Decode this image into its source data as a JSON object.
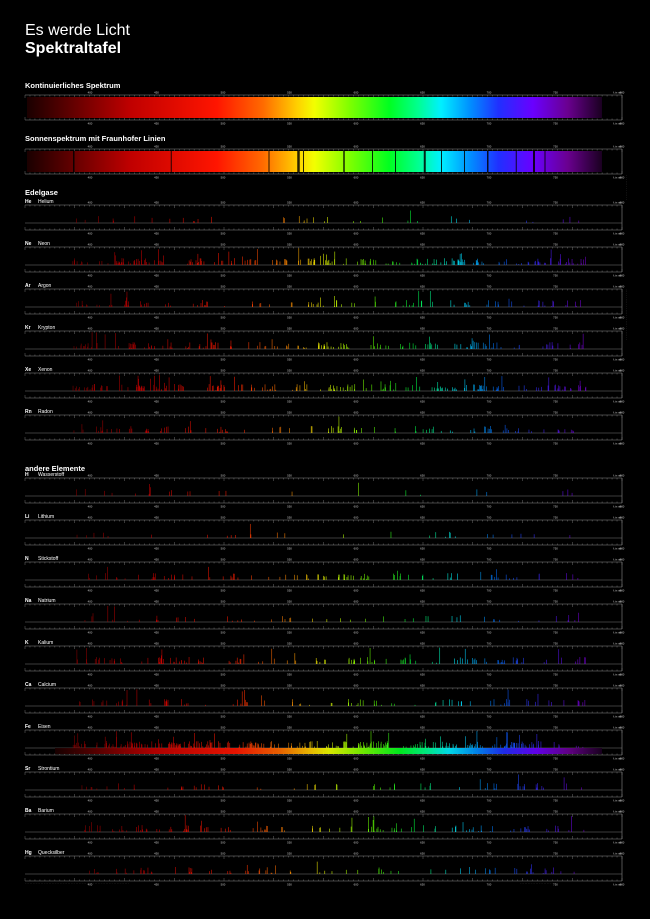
{
  "title": "Es werde Licht",
  "subtitle": "Spektraltafel",
  "sections": {
    "continuous": "Kontinuierliches Spektrum",
    "solar": "Sonnenspektrum mit Fraunhofer Linien",
    "noble": "Edelgase",
    "other": "andere Elemente"
  },
  "tick_labels": [
    "400",
    "450",
    "500",
    "550",
    "600",
    "650",
    "700",
    "750",
    "800"
  ],
  "unit": "λ in nm",
  "elements": [
    {
      "symbol": "He",
      "name": "Helium",
      "density": 0.1
    },
    {
      "symbol": "Ne",
      "name": "Neon",
      "density": 0.75
    },
    {
      "symbol": "Ar",
      "name": "Argon",
      "density": 0.35
    },
    {
      "symbol": "Kr",
      "name": "Krypton",
      "density": 0.55
    },
    {
      "symbol": "Xe",
      "name": "Xenon",
      "density": 0.7
    },
    {
      "symbol": "Rn",
      "name": "Radon",
      "density": 0.35
    },
    {
      "symbol": "H",
      "name": "Wasserstoff",
      "density": 0.05
    },
    {
      "symbol": "Li",
      "name": "Lithium",
      "density": 0.07
    },
    {
      "symbol": "N",
      "name": "Stickstoff",
      "density": 0.3
    },
    {
      "symbol": "Na",
      "name": "Natrium",
      "density": 0.15
    },
    {
      "symbol": "K",
      "name": "Kalium",
      "density": 0.45
    },
    {
      "symbol": "Ca",
      "name": "Calcium",
      "density": 0.3
    },
    {
      "symbol": "Fe",
      "name": "Eisen",
      "density": 1.0
    },
    {
      "symbol": "Sr",
      "name": "Strontium",
      "density": 0.2
    },
    {
      "symbol": "Ba",
      "name": "Barium",
      "density": 0.4
    },
    {
      "symbol": "Hg",
      "name": "Quecksilber",
      "density": 0.25
    }
  ],
  "colors": {
    "background": "#000000",
    "axis": "#9a9a9a",
    "text": "#ffffff"
  }
}
